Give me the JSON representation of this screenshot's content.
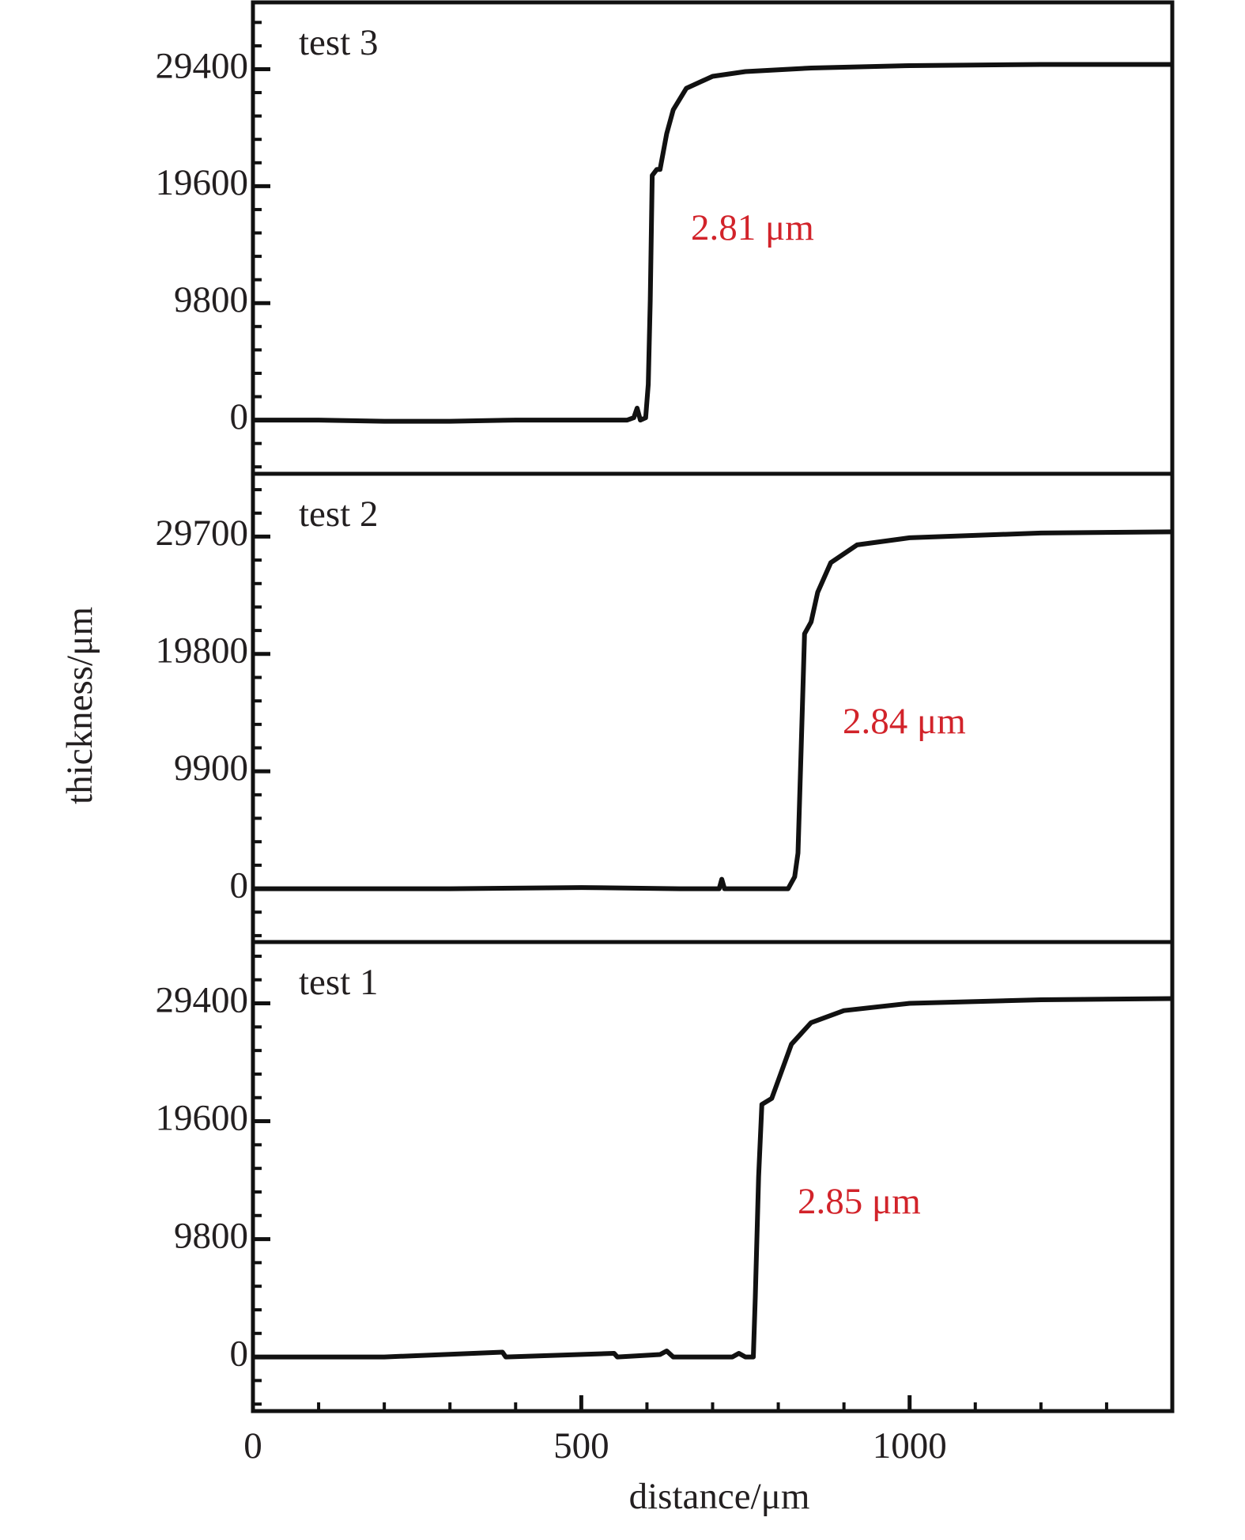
{
  "chart_data": [
    {
      "type": "line",
      "label": "test 3",
      "annotation": "2.81 μm",
      "xlim": [
        0,
        1400
      ],
      "ylim": [
        -4500,
        35000
      ],
      "yticks": [
        0,
        9800,
        19600,
        29400
      ],
      "x": [
        0,
        100,
        200,
        300,
        400,
        500,
        570,
        580,
        585,
        590,
        598,
        602,
        605,
        608,
        615,
        620,
        630,
        640,
        660,
        700,
        750,
        850,
        1000,
        1200,
        1400
      ],
      "series": [
        {
          "color": "#111111",
          "values": [
            0,
            0,
            -100,
            -100,
            0,
            0,
            0,
            200,
            1000,
            0,
            200,
            3000,
            10000,
            20500,
            21000,
            21000,
            24000,
            26000,
            27800,
            28800,
            29200,
            29500,
            29700,
            29800,
            29800
          ]
        }
      ]
    },
    {
      "type": "line",
      "label": "test 2",
      "annotation": "2.84 μm",
      "ylabel": "thickness/μm",
      "xlim": [
        0,
        1400
      ],
      "ylim": [
        -4500,
        35000
      ],
      "yticks": [
        0,
        9900,
        19800,
        29700
      ],
      "x": [
        0,
        300,
        500,
        650,
        710,
        714,
        718,
        800,
        815,
        825,
        830,
        835,
        840,
        850,
        860,
        880,
        920,
        1000,
        1200,
        1400
      ],
      "series": [
        {
          "color": "#111111",
          "values": [
            0,
            0,
            100,
            0,
            0,
            800,
            0,
            0,
            0,
            1000,
            3000,
            12000,
            21500,
            22500,
            25000,
            27500,
            29000,
            29600,
            30000,
            30100
          ]
        }
      ]
    },
    {
      "type": "line",
      "label": "test 1",
      "annotation": "2.85 μm",
      "xlabel": "distance/μm",
      "xlim": [
        0,
        1400
      ],
      "ylim": [
        -4500,
        34500
      ],
      "yticks": [
        0,
        9800,
        19600,
        29400
      ],
      "xticks": [
        0,
        500,
        1000
      ],
      "x": [
        0,
        200,
        380,
        385,
        550,
        555,
        620,
        630,
        640,
        730,
        740,
        750,
        762,
        765,
        770,
        775,
        790,
        800,
        820,
        850,
        900,
        1000,
        1200,
        1400
      ],
      "series": [
        {
          "color": "#111111",
          "values": [
            0,
            0,
            400,
            0,
            300,
            0,
            200,
            500,
            0,
            0,
            300,
            0,
            0,
            5000,
            15000,
            21000,
            21500,
            23000,
            26000,
            27800,
            28800,
            29400,
            29700,
            29800
          ]
        }
      ]
    }
  ]
}
